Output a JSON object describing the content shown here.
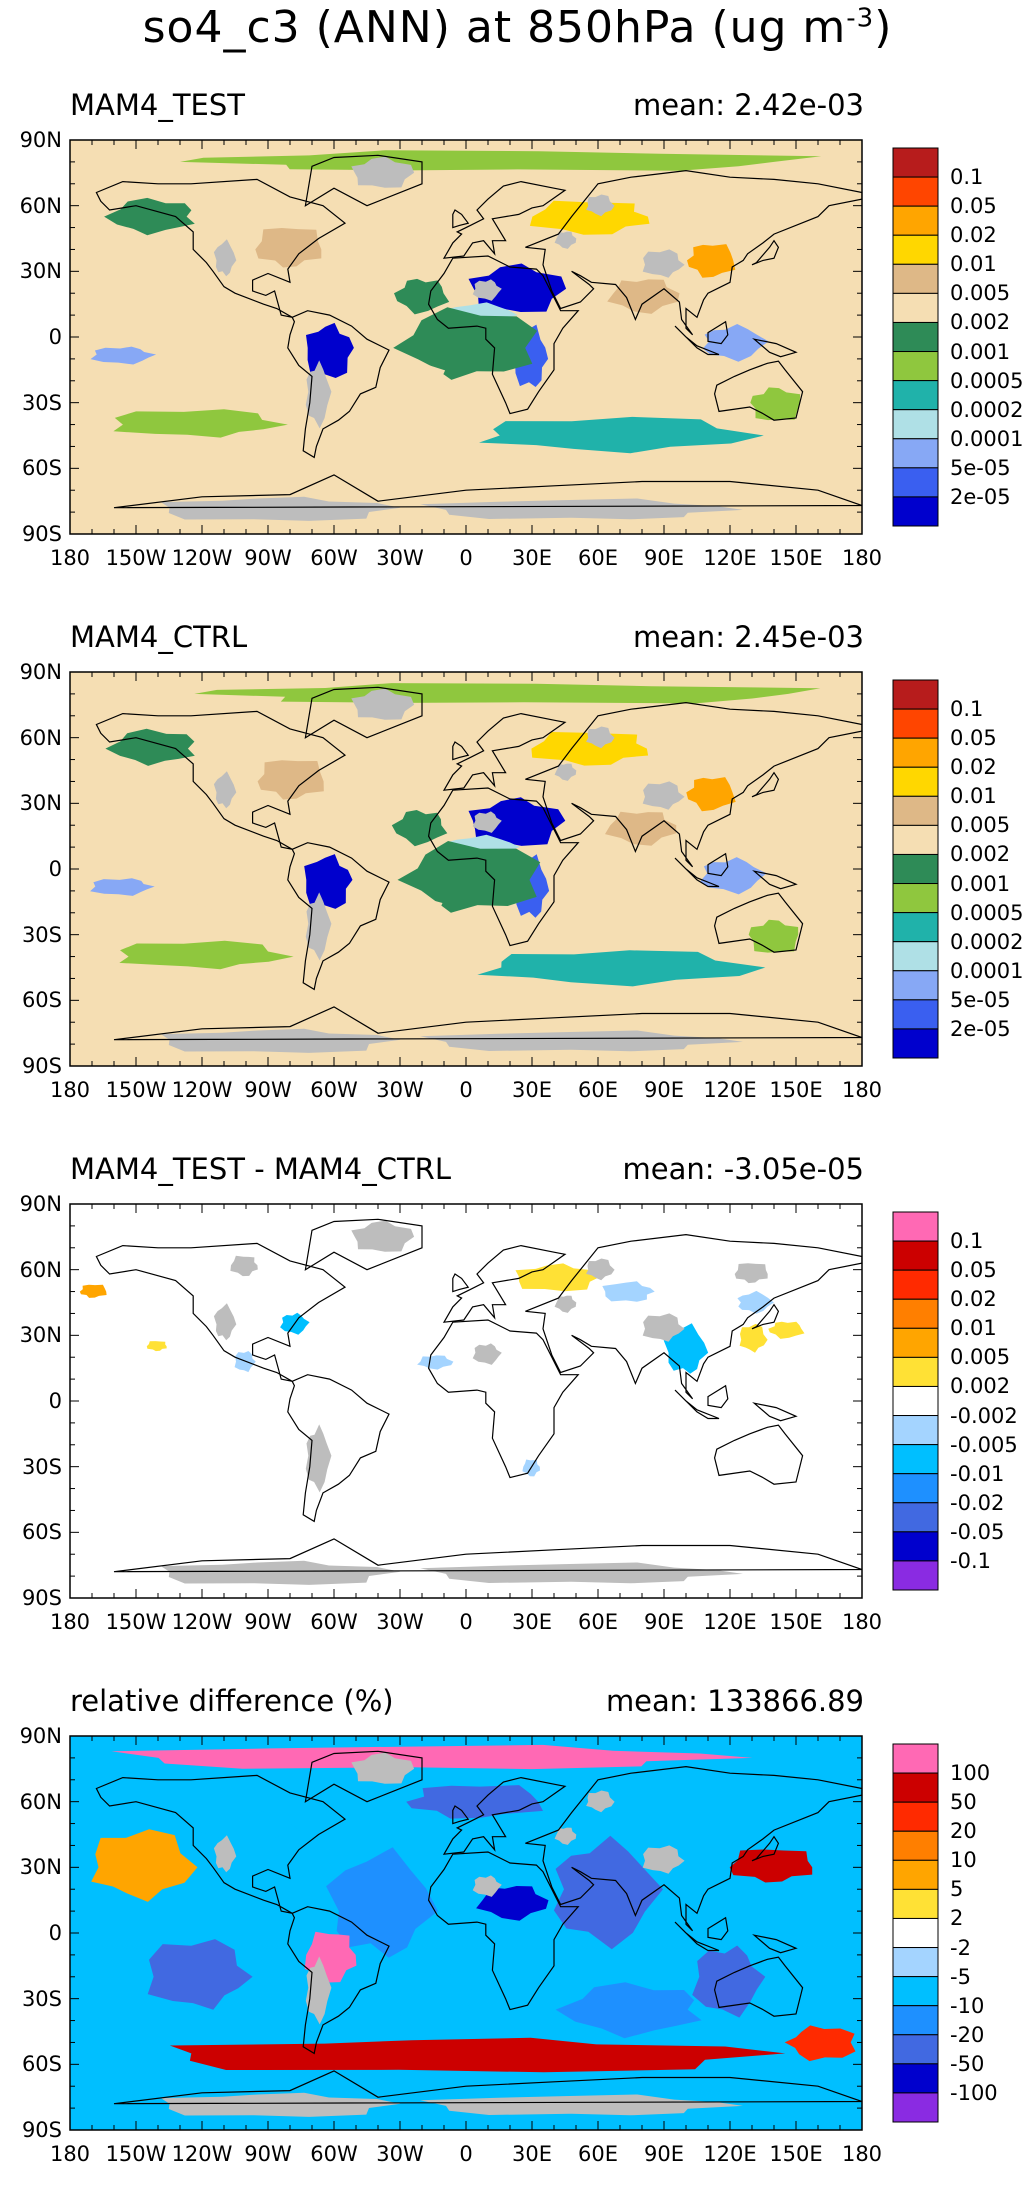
{
  "figure": {
    "title": "so4_c3 (ANN) at 850hPa (ug m",
    "title_superscript": "-3",
    "title_close": ")"
  },
  "axes": {
    "lat_labels": [
      "90N",
      "60N",
      "30N",
      "0",
      "30S",
      "60S",
      "90S"
    ],
    "lon_labels": [
      "180",
      "150W",
      "120W",
      "90W",
      "60W",
      "30W",
      "0",
      "30E",
      "60E",
      "90E",
      "120E",
      "150E",
      "180"
    ]
  },
  "colors": {
    "land_missing": "#bdbdbd",
    "coastline": "#000000"
  },
  "panels": [
    {
      "title": "MAM4_TEST",
      "mean": "mean: 2.42e-03",
      "type": "absolute",
      "colorbar_labels": [
        "0.1",
        "0.05",
        "0.02",
        "0.01",
        "0.005",
        "0.002",
        "0.001",
        "0.0005",
        "0.0002",
        "0.0001",
        "5e-05",
        "2e-05"
      ],
      "colorbar_colors": [
        "#b71c1c",
        "#ff4500",
        "#ffa500",
        "#ffd700",
        "#deb887",
        "#f5deb3",
        "#2e8b57",
        "#8fc73e",
        "#20b2aa",
        "#afe0e6",
        "#87a8f5",
        "#3a5ff0",
        "#0000cd"
      ]
    },
    {
      "title": "MAM4_CTRL",
      "mean": "mean: 2.45e-03",
      "type": "absolute",
      "colorbar_labels": [
        "0.1",
        "0.05",
        "0.02",
        "0.01",
        "0.005",
        "0.002",
        "0.001",
        "0.0005",
        "0.0002",
        "0.0001",
        "5e-05",
        "2e-05"
      ],
      "colorbar_colors": [
        "#b71c1c",
        "#ff4500",
        "#ffa500",
        "#ffd700",
        "#deb887",
        "#f5deb3",
        "#2e8b57",
        "#8fc73e",
        "#20b2aa",
        "#afe0e6",
        "#87a8f5",
        "#3a5ff0",
        "#0000cd"
      ]
    },
    {
      "title": "MAM4_TEST - MAM4_CTRL",
      "mean": "mean: -3.05e-05",
      "type": "difference",
      "colorbar_labels": [
        "0.1",
        "0.05",
        "0.02",
        "0.01",
        "0.005",
        "0.002",
        "-0.002",
        "-0.005",
        "-0.01",
        "-0.02",
        "-0.05",
        "-0.1"
      ],
      "colorbar_colors": [
        "#ff69b4",
        "#cc0000",
        "#ff2a00",
        "#ff7f00",
        "#ffa500",
        "#ffe135",
        "#ffffff",
        "#a4d4ff",
        "#00bfff",
        "#1e90ff",
        "#4169e1",
        "#0000cd",
        "#8a2be2"
      ]
    },
    {
      "title": "relative difference (%)",
      "mean": "mean: 133866.89",
      "type": "relative",
      "colorbar_labels": [
        "100",
        "50",
        "20",
        "10",
        "5",
        "2",
        "-2",
        "-5",
        "-10",
        "-20",
        "-50",
        "-100"
      ],
      "colorbar_colors": [
        "#ff69b4",
        "#cc0000",
        "#ff2a00",
        "#ff7f00",
        "#ffa500",
        "#ffe135",
        "#ffffff",
        "#a4d4ff",
        "#00bfff",
        "#1e90ff",
        "#4169e1",
        "#0000cd",
        "#8a2be2"
      ]
    }
  ]
}
